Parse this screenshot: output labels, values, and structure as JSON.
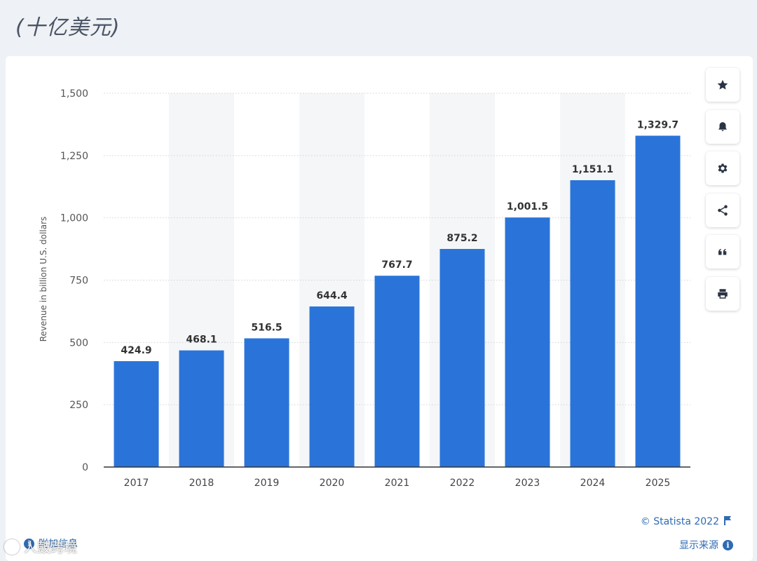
{
  "page": {
    "title": "(十亿美元)"
  },
  "chart_data": {
    "type": "bar",
    "categories": [
      "2017",
      "2018",
      "2019",
      "2020",
      "2021",
      "2022",
      "2023",
      "2024",
      "2025"
    ],
    "values": [
      424.9,
      468.1,
      516.5,
      644.4,
      767.7,
      875.2,
      1001.5,
      1151.1,
      1329.7
    ],
    "value_labels": [
      "424.9",
      "468.1",
      "516.5",
      "644.4",
      "767.7",
      "875.2",
      "1,001.5",
      "1,151.1",
      "1,329.7"
    ],
    "ylabel": "Revenue in billion U.S. dollars",
    "ylim": [
      0,
      1500
    ],
    "yticks": [
      0,
      250,
      500,
      750,
      1000,
      1250,
      1500
    ],
    "ytick_labels": [
      "0",
      "250",
      "500",
      "750",
      "1,000",
      "1,250",
      "1,500"
    ],
    "grid": true,
    "bar_color": "#2a74d9"
  },
  "toolbar": {
    "buttons": [
      {
        "name": "favorite-button",
        "icon": "star-icon"
      },
      {
        "name": "notification-button",
        "icon": "bell-icon"
      },
      {
        "name": "settings-button",
        "icon": "gear-icon"
      },
      {
        "name": "share-button",
        "icon": "share-icon"
      },
      {
        "name": "cite-button",
        "icon": "quote-icon"
      },
      {
        "name": "print-button",
        "icon": "printer-icon"
      }
    ]
  },
  "footer": {
    "credit": "© Statista 2022",
    "source_link": "显示来源",
    "additional_info": "附加信息",
    "watermark": "人鼓跨境"
  },
  "colors": {
    "accent": "#2f6ab3",
    "bar": "#2a74d9",
    "background": "#eef1f5"
  }
}
